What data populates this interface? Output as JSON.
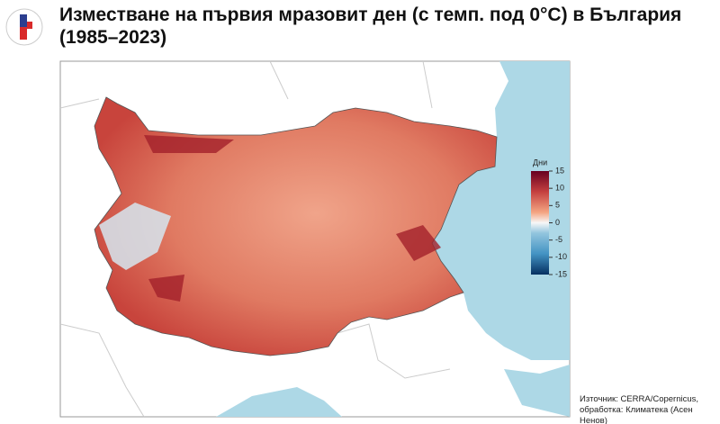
{
  "header": {
    "title": "Изместване на първия мразовит ден (с темп. под 0°C) в България (1985–2023)"
  },
  "legend": {
    "title": "Дни",
    "lim": [
      -15,
      15
    ],
    "ticks": [
      15,
      10,
      5,
      0,
      -5,
      -10,
      -15
    ]
  },
  "source": [
    "Източник: CERRA/Copernicus,",
    "обработка: Климатека (Асен Ненов)"
  ]
}
